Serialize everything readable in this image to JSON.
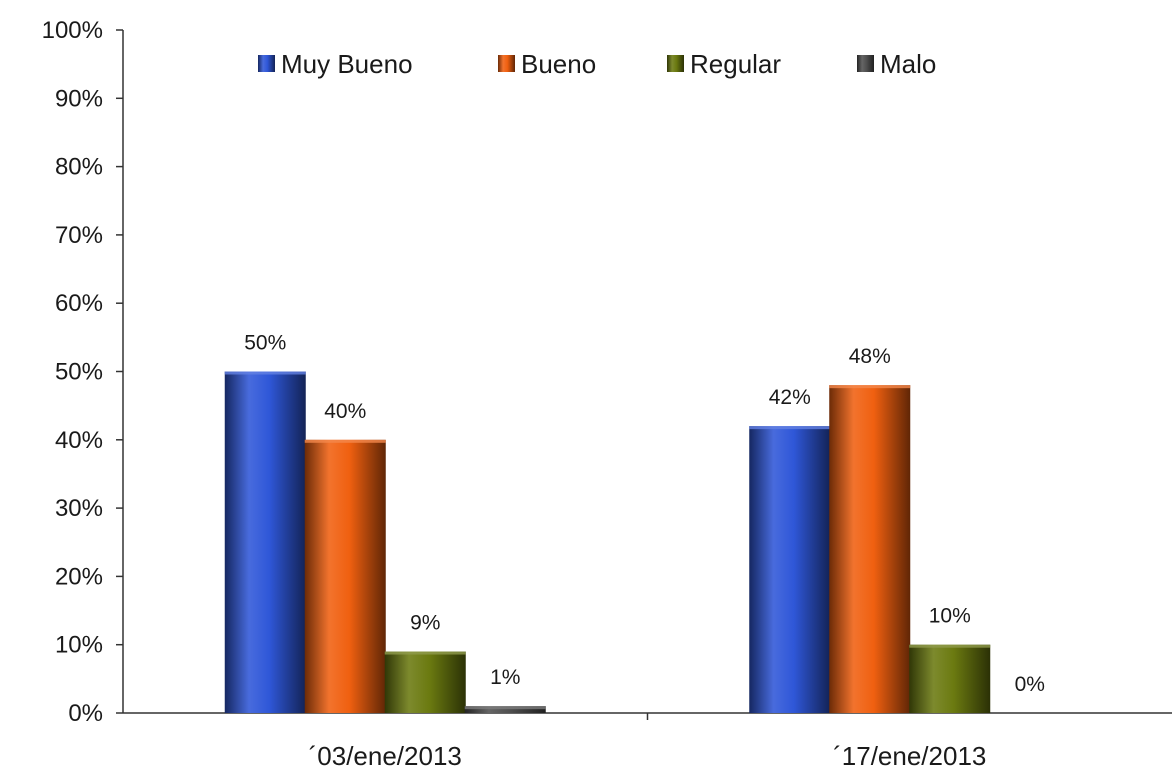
{
  "chart_data": {
    "type": "bar",
    "title": "",
    "xlabel": "",
    "ylabel": "",
    "ylim": [
      0,
      100
    ],
    "y_ticks": [
      "0%",
      "10%",
      "20%",
      "30%",
      "40%",
      "50%",
      "60%",
      "70%",
      "80%",
      "90%",
      "100%"
    ],
    "grid": false,
    "legend_position": "top",
    "categories": [
      "´03/ene/2013",
      "´17/ene/2013"
    ],
    "series": [
      {
        "name": "Muy Bueno",
        "values": [
          50,
          42
        ],
        "labels": [
          "50%",
          "42%"
        ],
        "color": "#2f57d8"
      },
      {
        "name": "Bueno",
        "values": [
          40,
          48
        ],
        "labels": [
          "40%",
          "48%"
        ],
        "color": "#f06010"
      },
      {
        "name": "Regular",
        "values": [
          9,
          10
        ],
        "labels": [
          "9%",
          "10%"
        ],
        "color": "#6b7a10"
      },
      {
        "name": "Malo",
        "values": [
          1,
          0
        ],
        "labels": [
          "1%",
          "0%"
        ],
        "color": "#505050"
      }
    ]
  }
}
